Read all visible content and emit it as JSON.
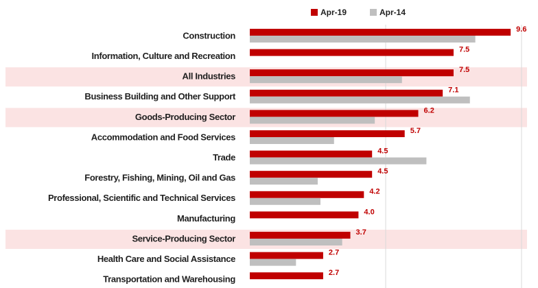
{
  "chart_data": {
    "type": "bar",
    "orientation": "horizontal",
    "categories": [
      "Construction",
      "Information, Culture and Recreation",
      "All Industries",
      "Business Building and Other Support",
      "Goods-Producing Sector",
      "Accommodation and Food Services",
      "Trade",
      "Forestry, Fishing, Mining, Oil and Gas",
      "Professional, Scientific and Technical Services",
      "Manufacturing",
      "Service-Producing Sector",
      "Health Care and Social Assistance",
      "Transportation and Warehousing"
    ],
    "highlight": [
      false,
      false,
      true,
      false,
      true,
      false,
      false,
      false,
      false,
      false,
      true,
      false,
      false
    ],
    "series": [
      {
        "name": "Apr-19",
        "color": "#c00000",
        "values": [
          9.6,
          7.5,
          7.5,
          7.1,
          6.2,
          5.7,
          4.5,
          4.5,
          4.2,
          4.0,
          3.7,
          2.7,
          2.7
        ],
        "value_labels": [
          "9.6",
          "7.5",
          "7.5",
          "7.1",
          "6.2",
          "5.7",
          "4.5",
          "4.5",
          "4.2",
          "4.0",
          "3.7",
          "2.7",
          "2.7"
        ]
      },
      {
        "name": "Apr-14",
        "color": "#bfbfbf",
        "values": [
          8.3,
          null,
          5.6,
          8.1,
          4.6,
          3.1,
          6.5,
          2.5,
          2.6,
          null,
          3.4,
          1.7,
          null
        ]
      }
    ],
    "xlim": [
      0,
      10
    ],
    "xticks": [
      0,
      5,
      10
    ],
    "grid": true,
    "legend": "top"
  }
}
